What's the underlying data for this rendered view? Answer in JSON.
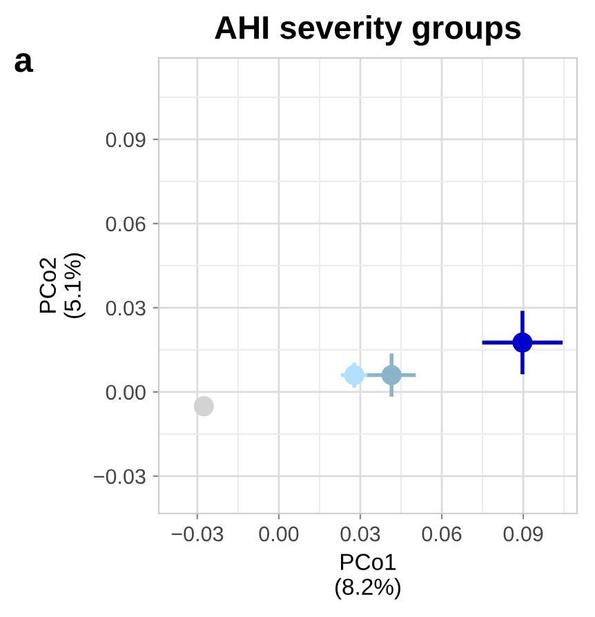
{
  "chart_data": {
    "type": "scatter",
    "title": "AHI severity groups",
    "xlabel": "PCo1\n(8.2%)",
    "ylabel": "PCo2\n(5.1%)",
    "annotations": [
      "a"
    ],
    "x": [
      -0.0276,
      0.0278,
      0.0415,
      0.0897
    ],
    "values": [
      -0.0051,
      0.006,
      0.006,
      0.0176
    ],
    "colors": [
      "#d3d3d3",
      "#b0e0ff",
      "#8ab4c8",
      "#0000cd"
    ],
    "errors": [
      null,
      0.0045,
      0.0077,
      0.0113
    ],
    "xerrors": [
      null,
      0.005,
      0.0089,
      0.0148
    ],
    "xlim": [
      -0.0442,
      0.1098
    ],
    "ylim": [
      -0.0433,
      0.119
    ],
    "xticks": [
      {
        "value": -0.03,
        "label": "−0.03"
      },
      {
        "value": 0,
        "label": "0.00"
      },
      {
        "value": 0.03,
        "label": "0.03"
      },
      {
        "value": 0.06,
        "label": "0.06"
      },
      {
        "value": 0.09,
        "label": "0.09"
      }
    ],
    "yticks": [
      {
        "value": -0.03,
        "label": "−0.03"
      },
      {
        "value": 0,
        "label": "0.00"
      },
      {
        "value": 0.03,
        "label": "0.03"
      },
      {
        "value": 0.06,
        "label": "0.06"
      },
      {
        "value": 0.09,
        "label": "0.09"
      }
    ],
    "grid": true,
    "marker": "circle"
  }
}
